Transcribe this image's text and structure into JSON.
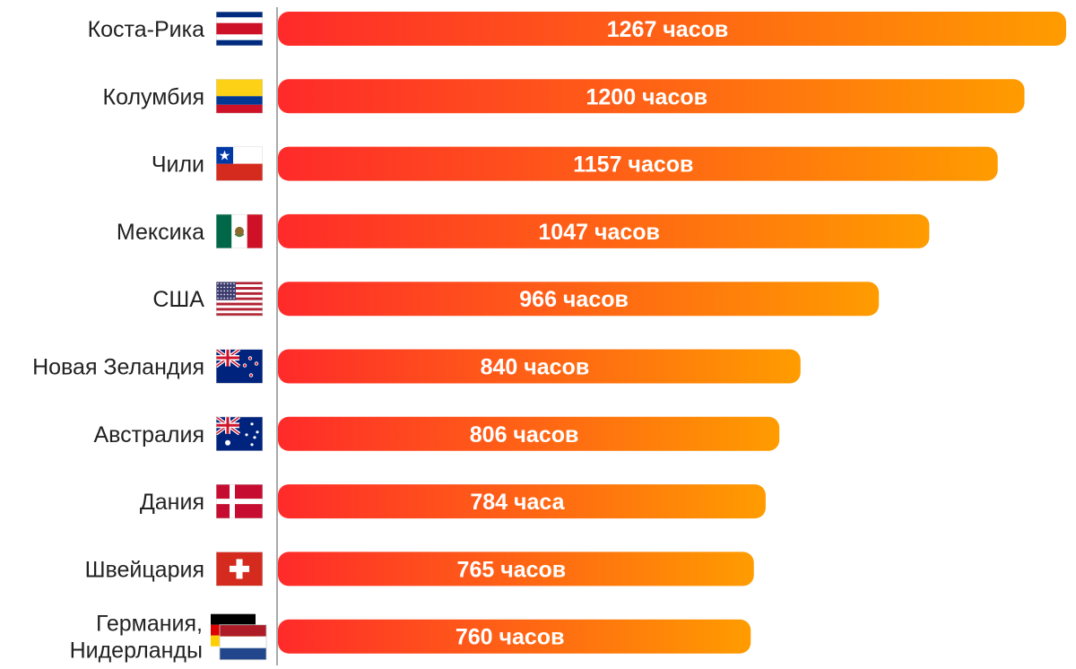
{
  "chart_data": {
    "type": "bar",
    "orientation": "horizontal",
    "categories": [
      "Коста-Рика",
      "Колумбия",
      "Чили",
      "Мексика",
      "США",
      "Новая Зеландия",
      "Австралия",
      "Дания",
      "Швейцария",
      "Германия, Нидерланды"
    ],
    "values": [
      1267,
      1200,
      1157,
      1047,
      966,
      840,
      806,
      784,
      765,
      760
    ],
    "value_labels": [
      "1267 часов",
      "1200 часов",
      "1157 часов",
      "1047 часов",
      "966 часов",
      "840 часов",
      "806 часов",
      "784 часа",
      "765 часов",
      "760 часов"
    ],
    "flags": [
      "costa-rica-flag",
      "colombia-flag",
      "chile-flag",
      "mexico-flag",
      "usa-flag",
      "new-zealand-flag",
      "australia-flag",
      "denmark-flag",
      "switzerland-flag",
      "germany-netherlands-flags"
    ],
    "bar_gradient": [
      "#ff2a2a",
      "#ff9c00"
    ],
    "axis_color": "#aaaaaa",
    "grid": false,
    "legend": "none"
  }
}
